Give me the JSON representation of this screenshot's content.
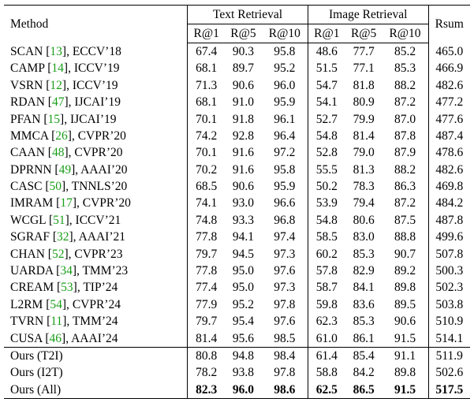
{
  "header": {
    "method": "Method",
    "text_retrieval": "Text Retrieval",
    "image_retrieval": "Image Retrieval",
    "rsum": "Rsum",
    "metrics": [
      "R@1",
      "R@5",
      "R@10",
      "R@1",
      "R@5",
      "R@10"
    ]
  },
  "rows": [
    {
      "name": "SCAN",
      "ref": "13",
      "venue": "ECCV’18",
      "vals": [
        "67.4",
        "90.3",
        "95.8",
        "48.6",
        "77.7",
        "85.2",
        "465.0"
      ]
    },
    {
      "name": "CAMP",
      "ref": "14",
      "venue": "ICCV’19",
      "vals": [
        "68.1",
        "89.7",
        "95.2",
        "51.5",
        "77.1",
        "85.3",
        "466.9"
      ]
    },
    {
      "name": "VSRN",
      "ref": "12",
      "venue": "ICCV’19",
      "vals": [
        "71.3",
        "90.6",
        "96.0",
        "54.7",
        "81.8",
        "88.2",
        "482.6"
      ]
    },
    {
      "name": "RDAN",
      "ref": "47",
      "venue": "IJCAI’19",
      "vals": [
        "68.1",
        "91.0",
        "95.9",
        "54.1",
        "80.9",
        "87.2",
        "477.2"
      ]
    },
    {
      "name": "PFAN",
      "ref": "15",
      "venue": "IJCAI’19",
      "vals": [
        "70.1",
        "91.8",
        "96.1",
        "52.7",
        "79.9",
        "87.0",
        "477.6"
      ]
    },
    {
      "name": "MMCA",
      "ref": "26",
      "venue": "CVPR’20",
      "vals": [
        "74.2",
        "92.8",
        "96.4",
        "54.8",
        "81.4",
        "87.8",
        "487.4"
      ]
    },
    {
      "name": "CAAN",
      "ref": "48",
      "venue": "CVPR’20",
      "vals": [
        "70.1",
        "91.6",
        "97.2",
        "52.8",
        "79.0",
        "87.9",
        "478.6"
      ]
    },
    {
      "name": "DPRNN",
      "ref": "49",
      "venue": "AAAI’20",
      "vals": [
        "70.2",
        "91.6",
        "95.8",
        "55.5",
        "81.3",
        "88.2",
        "482.6"
      ]
    },
    {
      "name": "CASC",
      "ref": "50",
      "venue": "TNNLS’20",
      "vals": [
        "68.5",
        "90.6",
        "95.9",
        "50.2",
        "78.3",
        "86.3",
        "469.8"
      ]
    },
    {
      "name": "IMRAM",
      "ref": "17",
      "venue": "CVPR’20",
      "vals": [
        "74.1",
        "93.0",
        "96.6",
        "53.9",
        "79.4",
        "87.2",
        "484.2"
      ]
    },
    {
      "name": "WCGL",
      "ref": "51",
      "venue": "ICCV’21",
      "vals": [
        "74.8",
        "93.3",
        "96.8",
        "54.8",
        "80.6",
        "87.5",
        "487.8"
      ]
    },
    {
      "name": "SGRAF",
      "ref": "32",
      "venue": "AAAI’21",
      "vals": [
        "77.8",
        "94.1",
        "97.4",
        "58.5",
        "83.0",
        "88.8",
        "499.6"
      ]
    },
    {
      "name": "CHAN",
      "ref": "52",
      "venue": "CVPR’23",
      "vals": [
        "79.7",
        "94.5",
        "97.3",
        "60.2",
        "85.3",
        "90.7",
        "507.8"
      ]
    },
    {
      "name": "UARDA",
      "ref": "34",
      "venue": "TMM’23",
      "vals": [
        "77.8",
        "95.0",
        "97.6",
        "57.8",
        "82.9",
        "89.2",
        "500.3"
      ]
    },
    {
      "name": "CREAM",
      "ref": "53",
      "venue": "TIP’24",
      "vals": [
        "77.4",
        "95.0",
        "97.3",
        "58.7",
        "84.1",
        "89.8",
        "502.3"
      ]
    },
    {
      "name": "L2RM",
      "ref": "54",
      "venue": "CVPR’24",
      "vals": [
        "77.9",
        "95.2",
        "97.8",
        "59.8",
        "83.6",
        "89.5",
        "503.8"
      ]
    },
    {
      "name": "TVRN",
      "ref": "11",
      "venue": "TMM’24",
      "vals": [
        "79.7",
        "95.4",
        "97.6",
        "62.3",
        "85.3",
        "90.6",
        "510.9"
      ]
    },
    {
      "name": "CUSA",
      "ref": "46",
      "venue": "AAAI’24",
      "vals": [
        "81.4",
        "95.6",
        "98.5",
        "61.0",
        "86.1",
        "91.5",
        "514.1"
      ]
    }
  ],
  "ours": [
    {
      "label": "Ours (T2I)",
      "vals": [
        "80.8",
        "94.8",
        "98.4",
        "61.4",
        "85.4",
        "91.1",
        "511.9"
      ]
    },
    {
      "label": "Ours (I2T)",
      "vals": [
        "78.2",
        "93.8",
        "97.8",
        "58.8",
        "84.2",
        "89.8",
        "502.6"
      ]
    },
    {
      "label": "Ours (All)",
      "vals": [
        "82.3",
        "96.0",
        "98.6",
        "62.5",
        "86.5",
        "91.5",
        "517.5"
      ],
      "bold": true
    }
  ],
  "colors": {
    "reference_link": "#1a9e1a"
  }
}
